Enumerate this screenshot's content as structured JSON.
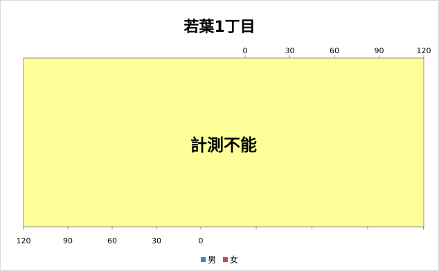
{
  "chart_data": {
    "type": "bar",
    "title": "若葉1丁目",
    "message": "計測不能",
    "top_axis": {
      "ticks": [
        "0",
        "30",
        "60",
        "90",
        "120"
      ],
      "range": [
        0,
        120
      ]
    },
    "bottom_axis": {
      "ticks": [
        "120",
        "90",
        "60",
        "30",
        "0"
      ],
      "range": [
        120,
        0
      ]
    },
    "plot_fill": "#ffff99",
    "series": [
      {
        "name": "男",
        "color": "#4f81bd",
        "values": []
      },
      {
        "name": "女",
        "color": "#c0504d",
        "values": []
      }
    ],
    "legend_position": "bottom"
  }
}
